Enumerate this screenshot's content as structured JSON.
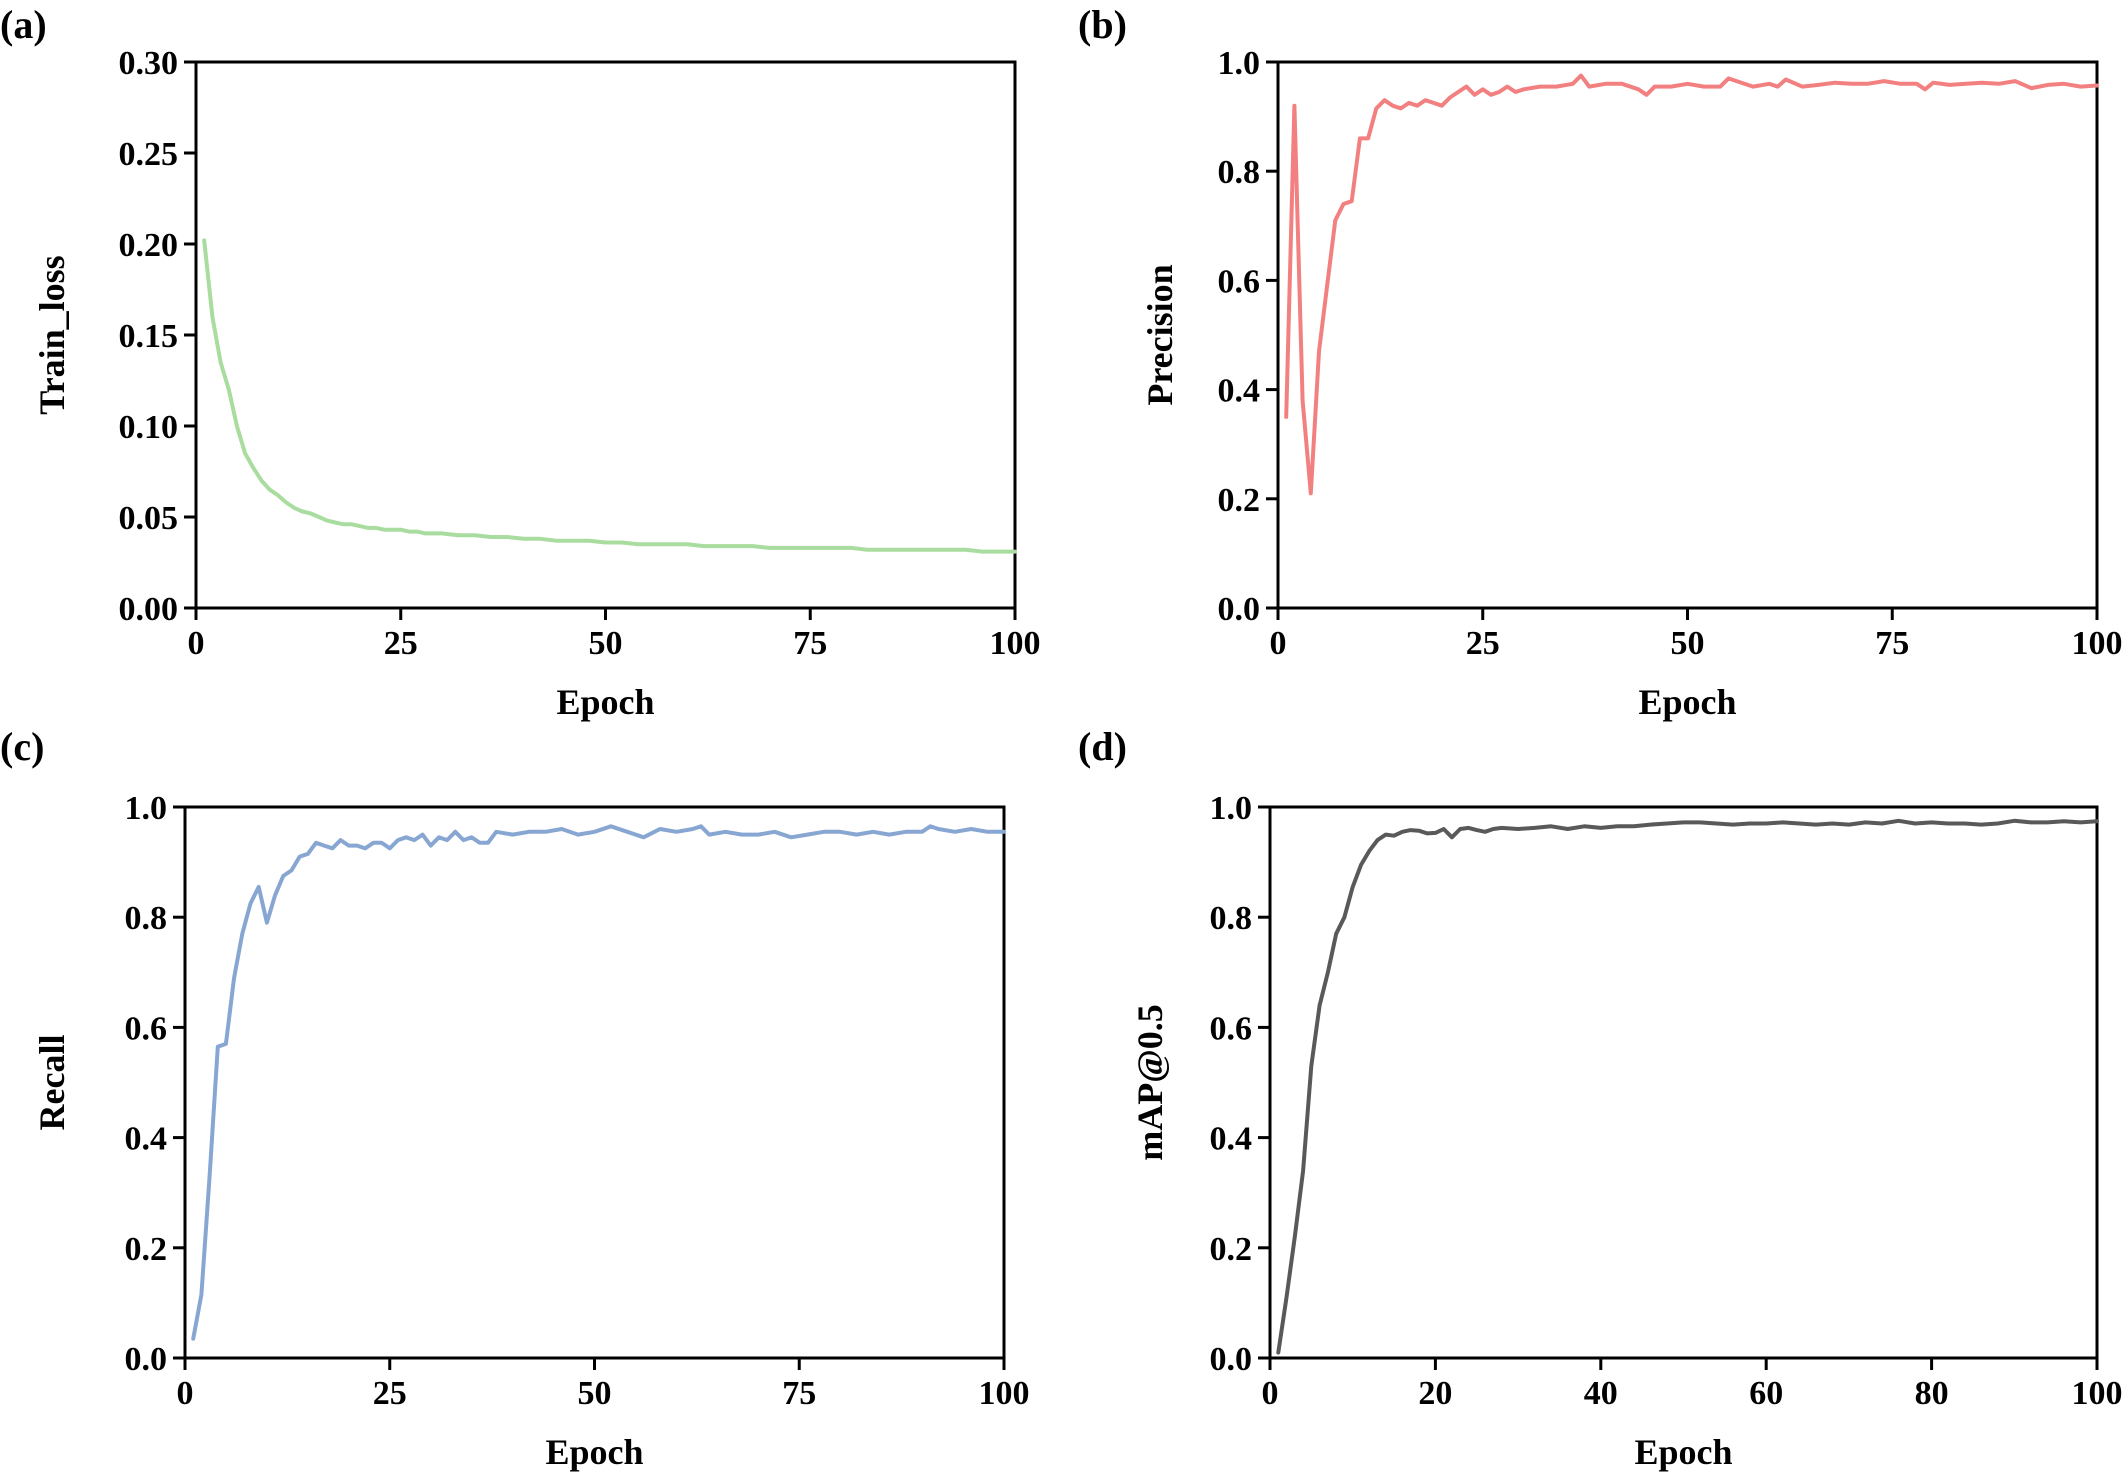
{
  "chart_data": [
    {
      "panel_label": "(a)",
      "type": "line",
      "xlabel": "Epoch",
      "ylabel": "Train_loss",
      "xlim": [
        0,
        100
      ],
      "ylim": [
        0,
        0.3
      ],
      "xticks": [
        0,
        25,
        50,
        75,
        100
      ],
      "yticks": [
        0,
        0.05,
        0.1,
        0.15,
        0.2,
        0.25,
        0.3
      ],
      "xtick_labels": [
        "0",
        "25",
        "50",
        "75",
        "100"
      ],
      "ytick_labels": [
        "0.00",
        "0.05",
        "0.10",
        "0.15",
        "0.20",
        "0.25",
        "0.30"
      ],
      "grid": false,
      "series": [
        {
          "color": "#a9dc9f",
          "x": [
            1,
            2,
            3,
            4,
            5,
            6,
            7,
            8,
            9,
            10,
            11,
            12,
            13,
            14,
            15,
            16,
            17,
            18,
            19,
            20,
            21,
            22,
            23,
            24,
            25,
            26,
            27,
            28,
            29,
            30,
            32,
            34,
            36,
            38,
            40,
            42,
            44,
            46,
            48,
            50,
            52,
            54,
            56,
            58,
            60,
            62,
            64,
            66,
            68,
            70,
            72,
            74,
            76,
            78,
            80,
            82,
            84,
            86,
            88,
            90,
            92,
            94,
            96,
            98,
            100
          ],
          "y": [
            0.202,
            0.16,
            0.135,
            0.12,
            0.1,
            0.085,
            0.077,
            0.07,
            0.065,
            0.062,
            0.058,
            0.055,
            0.053,
            0.052,
            0.05,
            0.048,
            0.047,
            0.046,
            0.046,
            0.045,
            0.044,
            0.044,
            0.043,
            0.043,
            0.043,
            0.042,
            0.042,
            0.041,
            0.041,
            0.041,
            0.04,
            0.04,
            0.039,
            0.039,
            0.038,
            0.038,
            0.037,
            0.037,
            0.037,
            0.036,
            0.036,
            0.035,
            0.035,
            0.035,
            0.035,
            0.034,
            0.034,
            0.034,
            0.034,
            0.033,
            0.033,
            0.033,
            0.033,
            0.033,
            0.033,
            0.032,
            0.032,
            0.032,
            0.032,
            0.032,
            0.032,
            0.032,
            0.031,
            0.031,
            0.031
          ]
        }
      ]
    },
    {
      "panel_label": "(b)",
      "type": "line",
      "xlabel": "Epoch",
      "ylabel": "Precision",
      "xlim": [
        0,
        100
      ],
      "ylim": [
        0,
        1.0
      ],
      "xticks": [
        0,
        25,
        50,
        75,
        100
      ],
      "yticks": [
        0,
        0.2,
        0.4,
        0.6,
        0.8,
        1.0
      ],
      "xtick_labels": [
        "0",
        "25",
        "50",
        "75",
        "100"
      ],
      "ytick_labels": [
        "0.0",
        "0.2",
        "0.4",
        "0.6",
        "0.8",
        "1.0"
      ],
      "grid": false,
      "series": [
        {
          "color": "#f28080",
          "x": [
            1,
            2,
            3,
            4,
            5,
            6,
            7,
            8,
            9,
            10,
            11,
            12,
            13,
            14,
            15,
            16,
            17,
            18,
            19,
            20,
            21,
            22,
            23,
            24,
            25,
            26,
            27,
            28,
            29,
            30,
            32,
            34,
            36,
            37,
            38,
            40,
            42,
            44,
            45,
            46,
            48,
            50,
            52,
            54,
            55,
            56,
            58,
            60,
            61,
            62,
            64,
            66,
            68,
            70,
            72,
            74,
            76,
            78,
            79,
            80,
            82,
            84,
            86,
            88,
            90,
            92,
            94,
            96,
            98,
            100
          ],
          "y": [
            0.35,
            0.92,
            0.38,
            0.21,
            0.47,
            0.59,
            0.71,
            0.74,
            0.745,
            0.86,
            0.86,
            0.915,
            0.93,
            0.92,
            0.915,
            0.925,
            0.92,
            0.93,
            0.925,
            0.92,
            0.935,
            0.945,
            0.955,
            0.94,
            0.95,
            0.94,
            0.945,
            0.955,
            0.945,
            0.95,
            0.955,
            0.955,
            0.96,
            0.975,
            0.955,
            0.96,
            0.96,
            0.95,
            0.94,
            0.955,
            0.955,
            0.96,
            0.955,
            0.955,
            0.97,
            0.965,
            0.955,
            0.96,
            0.955,
            0.968,
            0.955,
            0.958,
            0.962,
            0.96,
            0.96,
            0.965,
            0.96,
            0.96,
            0.95,
            0.962,
            0.958,
            0.96,
            0.962,
            0.96,
            0.965,
            0.952,
            0.958,
            0.96,
            0.955,
            0.957
          ]
        }
      ]
    },
    {
      "panel_label": "(c)",
      "type": "line",
      "xlabel": "Epoch",
      "ylabel": "Recall",
      "xlim": [
        0,
        100
      ],
      "ylim": [
        0,
        1.0
      ],
      "xticks": [
        0,
        25,
        50,
        75,
        100
      ],
      "yticks": [
        0,
        0.2,
        0.4,
        0.6,
        0.8,
        1.0
      ],
      "xtick_labels": [
        "0",
        "25",
        "50",
        "75",
        "100"
      ],
      "ytick_labels": [
        "0.0",
        "0.2",
        "0.4",
        "0.6",
        "0.8",
        "1.0"
      ],
      "grid": false,
      "series": [
        {
          "color": "#88a6d2",
          "x": [
            1,
            2,
            3,
            4,
            5,
            6,
            7,
            8,
            9,
            10,
            11,
            12,
            13,
            14,
            15,
            16,
            17,
            18,
            19,
            20,
            21,
            22,
            23,
            24,
            25,
            26,
            27,
            28,
            29,
            30,
            31,
            32,
            33,
            34,
            35,
            36,
            37,
            38,
            40,
            42,
            44,
            46,
            48,
            50,
            52,
            54,
            56,
            58,
            60,
            62,
            63,
            64,
            66,
            68,
            70,
            72,
            74,
            76,
            78,
            80,
            82,
            84,
            86,
            88,
            90,
            91,
            92,
            94,
            96,
            98,
            100
          ],
          "y": [
            0.035,
            0.115,
            0.33,
            0.565,
            0.57,
            0.69,
            0.77,
            0.825,
            0.855,
            0.79,
            0.84,
            0.875,
            0.885,
            0.91,
            0.915,
            0.935,
            0.93,
            0.925,
            0.94,
            0.93,
            0.93,
            0.925,
            0.935,
            0.935,
            0.925,
            0.94,
            0.945,
            0.94,
            0.95,
            0.93,
            0.945,
            0.94,
            0.955,
            0.94,
            0.945,
            0.935,
            0.935,
            0.955,
            0.95,
            0.955,
            0.955,
            0.96,
            0.95,
            0.955,
            0.965,
            0.955,
            0.945,
            0.96,
            0.955,
            0.96,
            0.965,
            0.95,
            0.955,
            0.95,
            0.95,
            0.955,
            0.945,
            0.95,
            0.955,
            0.955,
            0.95,
            0.955,
            0.95,
            0.955,
            0.955,
            0.965,
            0.96,
            0.955,
            0.96,
            0.955,
            0.955
          ]
        }
      ]
    },
    {
      "panel_label": "(d)",
      "type": "line",
      "xlabel": "Epoch",
      "ylabel": "mAP@0.5",
      "xlim": [
        0,
        100
      ],
      "ylim": [
        0,
        1.0
      ],
      "xticks": [
        0,
        20,
        40,
        60,
        80,
        100
      ],
      "yticks": [
        0,
        0.2,
        0.4,
        0.6,
        0.8,
        1.0
      ],
      "xtick_labels": [
        "0",
        "20",
        "40",
        "60",
        "80",
        "100"
      ],
      "ytick_labels": [
        "0.0",
        "0.2",
        "0.4",
        "0.6",
        "0.8",
        "1.0"
      ],
      "grid": false,
      "series": [
        {
          "color": "#595959",
          "x": [
            1,
            2,
            3,
            4,
            5,
            6,
            7,
            8,
            9,
            10,
            11,
            12,
            13,
            14,
            15,
            16,
            17,
            18,
            19,
            20,
            21,
            22,
            23,
            24,
            25,
            26,
            27,
            28,
            30,
            32,
            34,
            36,
            38,
            40,
            42,
            44,
            46,
            48,
            50,
            52,
            54,
            56,
            58,
            60,
            62,
            64,
            66,
            68,
            70,
            72,
            74,
            76,
            78,
            80,
            82,
            84,
            86,
            88,
            90,
            92,
            94,
            96,
            98,
            100
          ],
          "y": [
            0.01,
            0.11,
            0.22,
            0.34,
            0.53,
            0.64,
            0.7,
            0.77,
            0.8,
            0.855,
            0.895,
            0.92,
            0.94,
            0.95,
            0.948,
            0.955,
            0.958,
            0.957,
            0.952,
            0.953,
            0.96,
            0.945,
            0.96,
            0.962,
            0.958,
            0.955,
            0.96,
            0.962,
            0.96,
            0.962,
            0.965,
            0.96,
            0.965,
            0.962,
            0.965,
            0.965,
            0.968,
            0.97,
            0.972,
            0.972,
            0.97,
            0.968,
            0.97,
            0.97,
            0.972,
            0.97,
            0.968,
            0.97,
            0.968,
            0.972,
            0.97,
            0.975,
            0.97,
            0.972,
            0.97,
            0.97,
            0.968,
            0.97,
            0.975,
            0.972,
            0.972,
            0.974,
            0.972,
            0.974
          ]
        }
      ]
    }
  ]
}
